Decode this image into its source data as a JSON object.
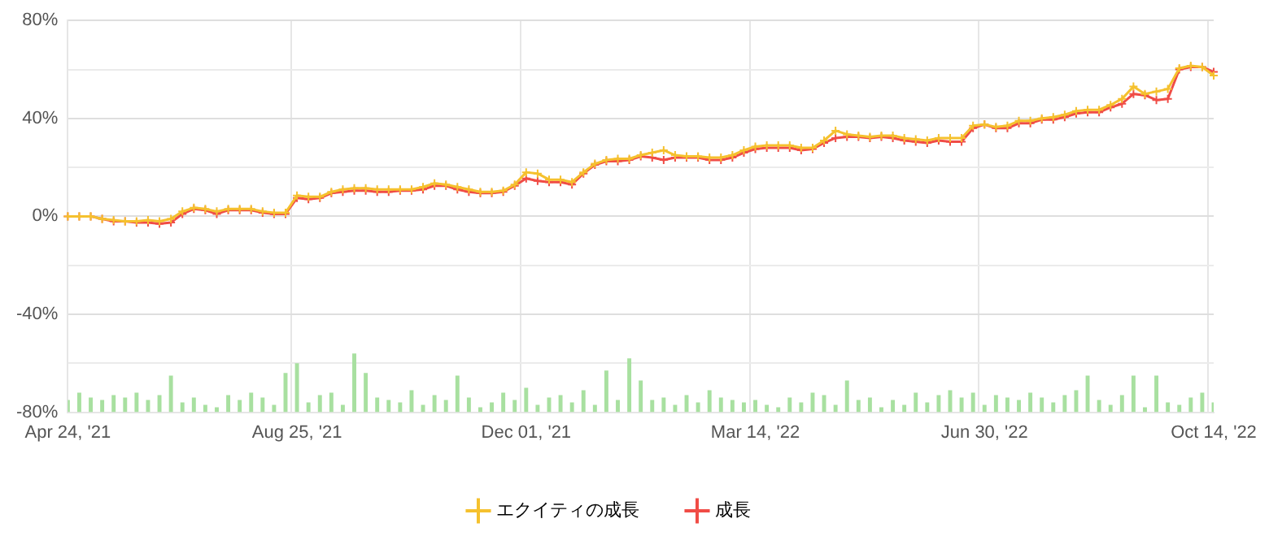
{
  "chart_data": {
    "type": "line",
    "categories": [
      "Apr 24, '21",
      null,
      null,
      null,
      null,
      null,
      null,
      null,
      null,
      null,
      null,
      null,
      null,
      null,
      null,
      null,
      null,
      null,
      null,
      null,
      "Aug 25, '21",
      null,
      null,
      null,
      null,
      null,
      null,
      null,
      null,
      null,
      null,
      null,
      null,
      null,
      null,
      null,
      null,
      null,
      null,
      null,
      "Dec 01, '21",
      null,
      null,
      null,
      null,
      null,
      null,
      null,
      null,
      null,
      null,
      null,
      null,
      null,
      null,
      null,
      null,
      null,
      null,
      null,
      "Mar 14, '22",
      null,
      null,
      null,
      null,
      null,
      null,
      null,
      null,
      null,
      null,
      null,
      null,
      null,
      null,
      null,
      null,
      null,
      null,
      null,
      "Jun 30, '22",
      null,
      null,
      null,
      null,
      null,
      null,
      null,
      null,
      null,
      null,
      null,
      null,
      null,
      null,
      null,
      null,
      null,
      null,
      null,
      "Oct 14, '22"
    ],
    "series": [
      {
        "type": "bar",
        "color": "#a8e0a0",
        "base": [
          -80,
          -80,
          -80,
          -80,
          -80,
          -80,
          -80,
          -80,
          -80,
          -80,
          -80,
          -80,
          -80,
          -80,
          -80,
          -80,
          -80,
          -80,
          -80,
          -80,
          -80,
          -80,
          -80,
          -80,
          -80,
          -80,
          -80,
          -80,
          -80,
          -80,
          -80,
          -80,
          -80,
          -80,
          -80,
          -80,
          -80,
          -80,
          -80,
          -80,
          -80,
          -80,
          -80,
          -80,
          -80,
          -80,
          -80,
          -80,
          -80,
          -80,
          -80,
          -80,
          -80,
          -80,
          -80,
          -80,
          -80,
          -80,
          -80,
          -80,
          -80,
          -80,
          -80,
          -80,
          -80,
          -80,
          -80,
          -80,
          -80,
          -80,
          -80,
          -80,
          -80,
          -80,
          -80,
          -80,
          -80,
          -80,
          -80,
          -80,
          -80,
          -80,
          -80,
          -80,
          -80,
          -80,
          -80,
          -80,
          -80,
          -80,
          -80,
          -80,
          -80,
          -80,
          -80,
          -80,
          -80,
          -80,
          -80,
          -80,
          -80
        ],
        "values": [
          5,
          8,
          6,
          5,
          7,
          6,
          8,
          5,
          7,
          15,
          4,
          6,
          3,
          2,
          7,
          5,
          8,
          6,
          3,
          16,
          20,
          4,
          7,
          8,
          3,
          24,
          16,
          6,
          5,
          4,
          9,
          3,
          7,
          5,
          15,
          6,
          2,
          4,
          8,
          5,
          10,
          3,
          6,
          7,
          4,
          9,
          3,
          17,
          5,
          22,
          13,
          5,
          6,
          3,
          7,
          4,
          9,
          6,
          5,
          4,
          5,
          3,
          2,
          6,
          4,
          8,
          7,
          3,
          13,
          5,
          6,
          2,
          5,
          3,
          8,
          4,
          7,
          9,
          6,
          8,
          3,
          7,
          6,
          5,
          8,
          6,
          4,
          7,
          9,
          15,
          5,
          3,
          7,
          15,
          2,
          15,
          4,
          3,
          6,
          8,
          4
        ]
      },
      {
        "name": "エクイティの成長",
        "color": "#f5c12e",
        "values": [
          0,
          0,
          0,
          -1,
          -1.5,
          -2,
          -2,
          -1.5,
          -2,
          -1,
          2,
          3.5,
          3,
          2,
          3,
          3,
          3,
          2,
          1.5,
          1.5,
          8.5,
          8,
          8,
          10,
          11,
          11.5,
          11.5,
          11,
          11,
          11,
          11,
          12,
          13.5,
          13,
          12,
          11,
          10,
          10,
          10.5,
          13,
          18,
          17.5,
          15,
          15,
          14,
          18,
          21.5,
          23,
          23.5,
          23.5,
          25,
          26,
          27,
          25,
          24.5,
          24.5,
          24,
          24,
          25,
          27,
          28.5,
          29,
          29,
          29,
          28,
          28,
          31,
          35,
          33.5,
          33,
          32.5,
          33,
          33,
          32,
          31.5,
          31,
          32,
          32,
          32,
          37,
          37.5,
          36.5,
          37,
          39,
          39,
          40,
          40.5,
          41.5,
          43,
          43.5,
          43.5,
          45.5,
          48,
          53,
          50,
          51,
          52,
          60.5,
          61.5,
          61,
          57.5
        ]
      },
      {
        "name": "成長",
        "color": "#f04c46",
        "values": [
          0,
          0,
          0,
          -1,
          -2,
          -2,
          -2.5,
          -2.5,
          -3,
          -2.5,
          1,
          3,
          2.5,
          1,
          2.5,
          2.5,
          2.5,
          1.5,
          1,
          1,
          7.5,
          7,
          7.5,
          9.5,
          10,
          10.5,
          10.5,
          10,
          10,
          10.5,
          10.5,
          11,
          12.5,
          12.5,
          11,
          10,
          9.5,
          9.5,
          10,
          12.5,
          15.5,
          14.5,
          14,
          14,
          13,
          17.5,
          21,
          22.5,
          22.5,
          23,
          24.5,
          24,
          23,
          24,
          24,
          24,
          23,
          23,
          24,
          26,
          27.5,
          28,
          28,
          28,
          27,
          27.5,
          30,
          32,
          32.5,
          32.5,
          32,
          32.5,
          32,
          31,
          30.5,
          30,
          31,
          30.5,
          30.5,
          36,
          37.5,
          36,
          36,
          38,
          38,
          39.5,
          39.5,
          40.5,
          42,
          42.5,
          42.5,
          44.5,
          46,
          50,
          49.5,
          47.5,
          48,
          60,
          61,
          61,
          59
        ]
      }
    ],
    "ylim": [
      -80,
      80
    ],
    "yticks": [
      {
        "value": -80,
        "label": "-80%"
      },
      {
        "value": -60,
        "label": null
      },
      {
        "value": -40,
        "label": "-40%"
      },
      {
        "value": -20,
        "label": null
      },
      {
        "value": 0,
        "label": "0%"
      },
      {
        "value": 20,
        "label": null
      },
      {
        "value": 40,
        "label": "40%"
      },
      {
        "value": 60,
        "label": null
      },
      {
        "value": 80,
        "label": "80%"
      }
    ],
    "grid": true,
    "legend": "bottom",
    "marker": "cross",
    "line_style": "solid"
  }
}
